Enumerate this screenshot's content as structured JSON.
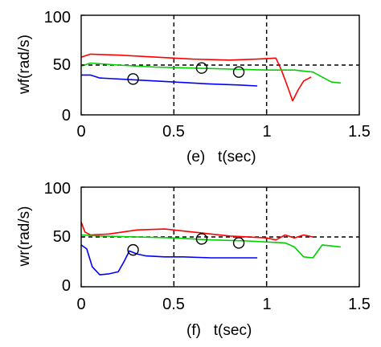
{
  "chart_data": [
    {
      "type": "line",
      "caption": "(e)   t(sec)",
      "ylabel": "wf(rad/s)",
      "xlim": [
        0,
        1.5
      ],
      "ylim": [
        0,
        100
      ],
      "xticks": [
        "0",
        "0.5",
        "1",
        "1.5"
      ],
      "yticks": [
        "0",
        "50",
        "100"
      ],
      "reference_lines": {
        "vertical_x": [
          0.5,
          1.0
        ],
        "horizontal_y": 50,
        "style": "dashed"
      },
      "series": [
        {
          "color": "#ff0000",
          "x": [
            0,
            0.05,
            0.2,
            0.4,
            0.6,
            0.8,
            0.95,
            1.05,
            1.08,
            1.12,
            1.14,
            1.17,
            1.2,
            1.24
          ],
          "y": [
            58,
            61,
            60,
            58,
            56,
            55,
            56,
            57,
            45,
            25,
            14,
            25,
            34,
            38
          ]
        },
        {
          "color": "#00d000",
          "x": [
            0,
            0.05,
            0.2,
            0.4,
            0.6,
            0.8,
            1.0,
            1.15,
            1.25,
            1.3,
            1.35,
            1.4
          ],
          "y": [
            49,
            52,
            50,
            48,
            47,
            46,
            45,
            45,
            43,
            38,
            33,
            32
          ]
        },
        {
          "color": "#0000ff",
          "x": [
            0,
            0.05,
            0.1,
            0.3,
            0.5,
            0.7,
            0.85,
            0.95
          ],
          "y": [
            40,
            40,
            37,
            35,
            33,
            31,
            30,
            29
          ]
        }
      ],
      "markers": [
        {
          "x": 0.28,
          "y": 36
        },
        {
          "x": 0.65,
          "y": 47
        },
        {
          "x": 0.85,
          "y": 43
        }
      ]
    },
    {
      "type": "line",
      "caption": "(f)   t(sec)",
      "ylabel": "wr(rad/s)",
      "xlim": [
        0,
        1.5
      ],
      "ylim": [
        0,
        100
      ],
      "xticks": [
        "0",
        "0.5",
        "1",
        "1.5"
      ],
      "yticks": [
        "0",
        "50",
        "100"
      ],
      "reference_lines": {
        "vertical_x": [
          0.5,
          1.0
        ],
        "horizontal_y": 50,
        "style": "dashed"
      },
      "series": [
        {
          "color": "#ff0000",
          "x": [
            0,
            0.02,
            0.05,
            0.15,
            0.3,
            0.45,
            0.6,
            0.8,
            1.0,
            1.05,
            1.1,
            1.15,
            1.2,
            1.25
          ],
          "y": [
            65,
            55,
            52,
            53,
            57,
            58,
            55,
            51,
            49,
            47,
            52,
            49,
            52,
            50
          ]
        },
        {
          "color": "#00d000",
          "x": [
            0,
            0.1,
            0.3,
            0.5,
            0.7,
            0.9,
            1.1,
            1.15,
            1.2,
            1.25,
            1.3,
            1.35,
            1.4
          ],
          "y": [
            52,
            51,
            50,
            49,
            47,
            46,
            44,
            40,
            30,
            29,
            42,
            41,
            40
          ]
        },
        {
          "color": "#0000ff",
          "x": [
            0,
            0.03,
            0.06,
            0.1,
            0.15,
            0.2,
            0.23,
            0.26,
            0.3,
            0.35,
            0.45,
            0.55,
            0.7,
            0.85,
            0.95
          ],
          "y": [
            42,
            38,
            20,
            12,
            13,
            15,
            25,
            36,
            33,
            31,
            30,
            30,
            29,
            29,
            29
          ]
        }
      ],
      "markers": [
        {
          "x": 0.28,
          "y": 37
        },
        {
          "x": 0.65,
          "y": 48
        },
        {
          "x": 0.85,
          "y": 44
        }
      ]
    }
  ]
}
